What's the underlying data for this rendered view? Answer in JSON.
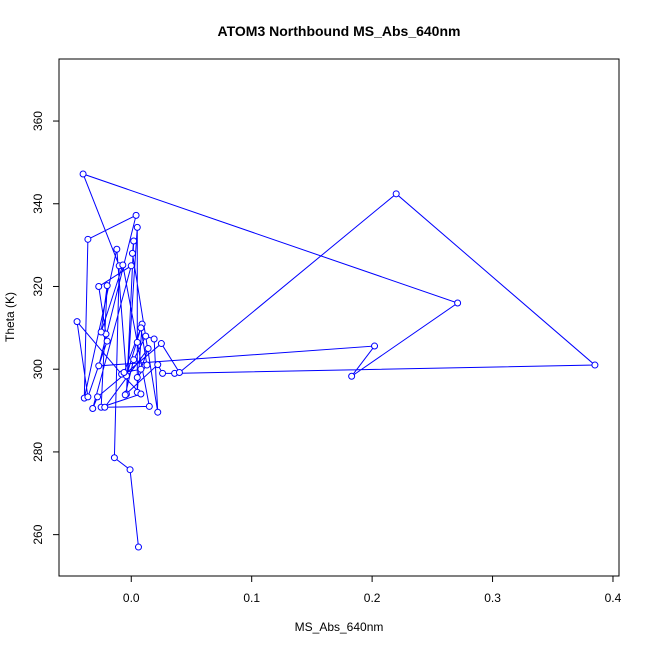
{
  "chart_data": {
    "type": "line",
    "title": "ATOM3 Northbound MS_Abs_640nm",
    "xlabel": "MS_Abs_640nm",
    "ylabel": "Theta (K)",
    "xlim": [
      -0.06,
      0.405
    ],
    "ylim": [
      250,
      375
    ],
    "xticks": [
      0.0,
      0.1,
      0.2,
      0.3,
      0.4
    ],
    "xtick_labels": [
      "0.0",
      "0.1",
      "0.2",
      "0.3",
      "0.4"
    ],
    "yticks": [
      260,
      280,
      300,
      320,
      340,
      360
    ],
    "ytick_labels": [
      "260",
      "280",
      "300",
      "320",
      "340",
      "360"
    ],
    "grid": false,
    "marker": "open-circle",
    "line_color": "#0000ff",
    "series": [
      {
        "points": [
          [
            0.006,
            257.0
          ],
          [
            -0.001,
            275.7
          ],
          [
            -0.014,
            278.6
          ],
          [
            -0.01,
            325.0
          ],
          [
            -0.04,
            347.2
          ],
          [
            0.271,
            316.0
          ],
          [
            0.183,
            298.3
          ],
          [
            0.202,
            305.6
          ],
          [
            -0.027,
            300.8
          ],
          [
            0.004,
            337.2
          ],
          [
            -0.036,
            331.4
          ],
          [
            -0.039,
            293.0
          ],
          [
            -0.012,
            329.0
          ],
          [
            -0.004,
            298.4
          ],
          [
            0.009,
            310.9
          ],
          [
            0.005,
            294.4
          ],
          [
            0.005,
            334.3
          ],
          [
            -0.004,
            294.0
          ],
          [
            0.002,
            331.0
          ],
          [
            0.001,
            328.0
          ],
          [
            0.022,
            289.6
          ],
          [
            0.019,
            307.3
          ],
          [
            0.012,
            308.0
          ],
          [
            0.002,
            302.3
          ],
          [
            -0.005,
            293.8
          ],
          [
            0.022,
            301.1
          ],
          [
            0.026,
            299.0
          ],
          [
            0.036,
            299.0
          ],
          [
            0.385,
            301.0
          ],
          [
            0.22,
            342.4
          ],
          [
            0.04,
            299.2
          ],
          [
            0.025,
            306.2
          ],
          [
            -0.028,
            293.3
          ],
          [
            -0.032,
            290.5
          ],
          [
            0.0,
            325.0
          ],
          [
            -0.027,
            320.0
          ],
          [
            -0.021,
            308.5
          ],
          [
            -0.02,
            306.8
          ],
          [
            -0.036,
            293.3
          ],
          [
            -0.045,
            311.5
          ],
          [
            -0.008,
            298.8
          ],
          [
            0.008,
            294.0
          ],
          [
            -0.025,
            290.8
          ],
          [
            -0.02,
            320.2
          ],
          [
            -0.025,
            309.0
          ],
          [
            -0.007,
            325.2
          ],
          [
            0.005,
            306.5
          ],
          [
            0.015,
            291.0
          ],
          [
            -0.022,
            290.8
          ],
          [
            0.014,
            305.0
          ],
          [
            0.008,
            300.0
          ],
          [
            -0.006,
            299.2
          ],
          [
            0.008,
            310.0
          ],
          [
            0.013,
            301.0
          ],
          [
            0.005,
            298.0
          ]
        ]
      }
    ]
  }
}
